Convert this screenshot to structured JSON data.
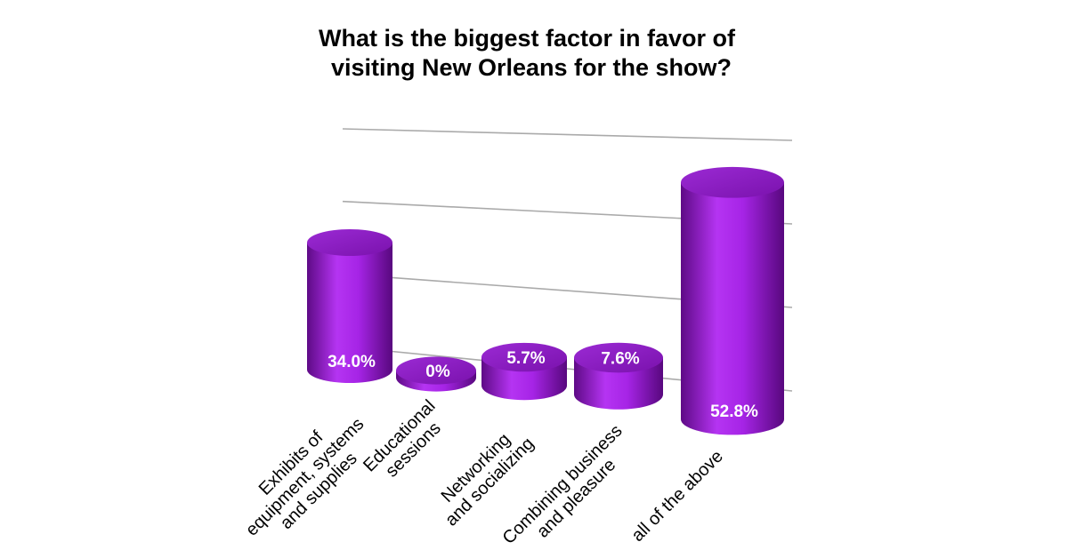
{
  "chart_data": {
    "type": "bar",
    "title": [
      "What is the biggest factor in favor of",
      "visiting New Orleans for the show?"
    ],
    "categories": [
      "Exhibits of\nequipment, systems\nand  supplies",
      "Educational\nsessions",
      "Networking\nand socializing",
      "Combining business\nand pleasure",
      "all of the above"
    ],
    "values": [
      34.0,
      0,
      5.7,
      7.6,
      52.8
    ],
    "value_labels": [
      "34.0%",
      "0%",
      "5.7%",
      "7.6%",
      "52.8%"
    ],
    "color": "#a020e0",
    "ylim": [
      0,
      60
    ],
    "yticks": [
      0,
      20,
      40,
      60
    ],
    "grid": true
  }
}
